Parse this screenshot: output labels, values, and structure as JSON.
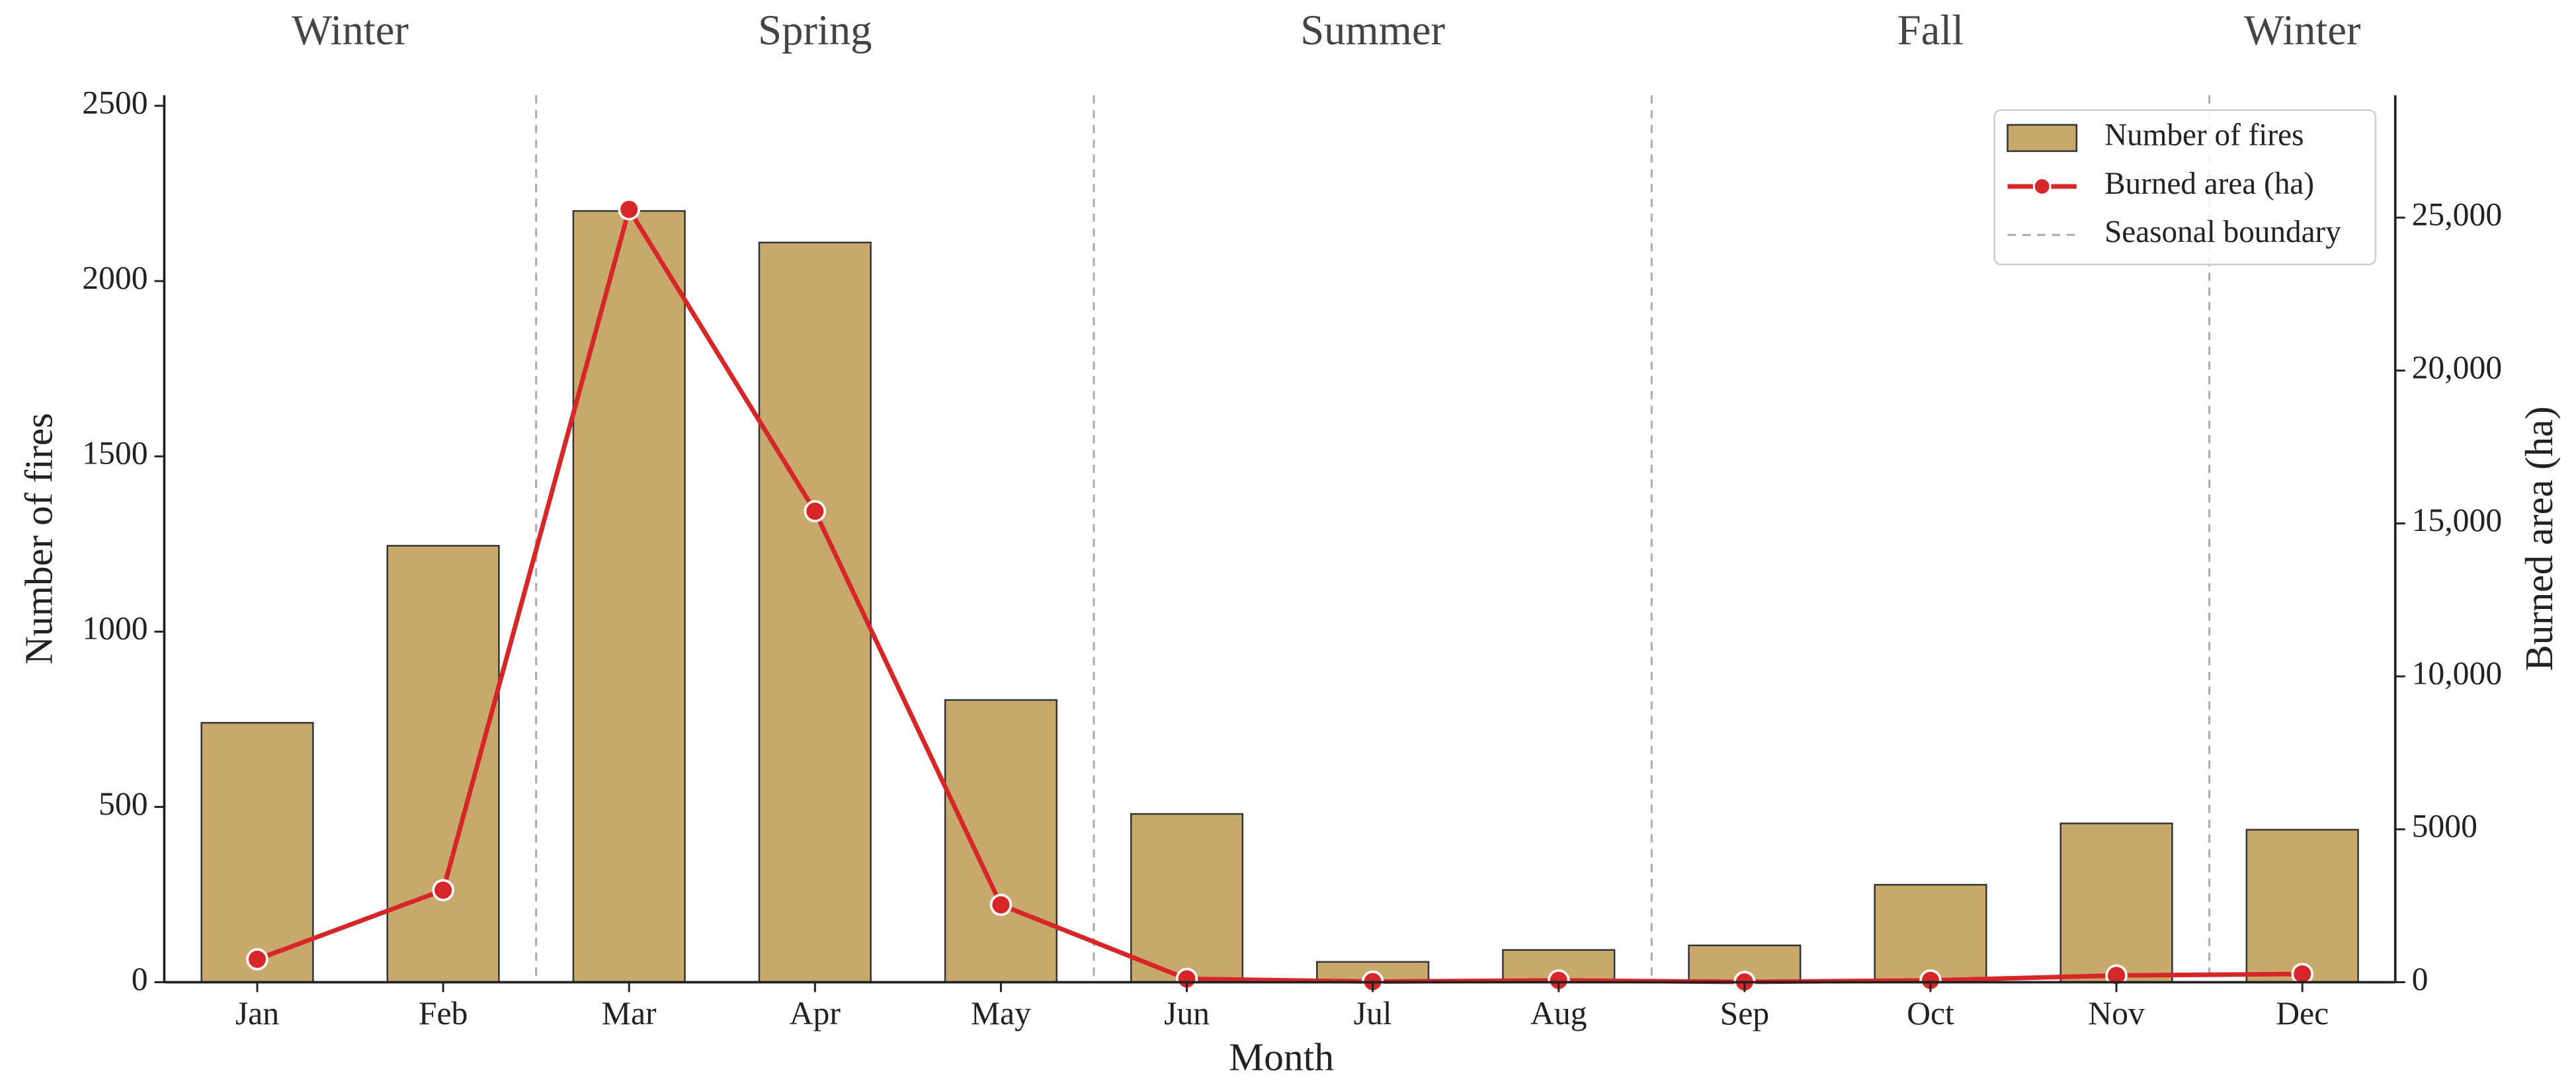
{
  "chart_data": {
    "type": "bar",
    "x_label": "Month",
    "y_label": "Number of fires",
    "y2_label": "Burned area (ha)",
    "categories": [
      "Jan",
      "Feb",
      "Mar",
      "Apr",
      "May",
      "Jun",
      "Jul",
      "Aug",
      "Sep",
      "Oct",
      "Nov",
      "Dec"
    ],
    "series": [
      {
        "name": "Number of fires",
        "type": "bar",
        "color": "#c8a96b",
        "edgecolor": "#333333",
        "values": [
          740,
          1245,
          2200,
          2110,
          805,
          480,
          58,
          92,
          105,
          278,
          453,
          435
        ]
      },
      {
        "name": "Burned area (ha)",
        "type": "line",
        "axis": "y2",
        "color": "#d62728",
        "values": [
          750,
          3010,
          25270,
          15400,
          2530,
          110,
          20,
          60,
          10,
          60,
          220,
          270
        ]
      }
    ],
    "seasonal_boundaries": {
      "name": "Seasonal boundary",
      "color": "#aaaaaa",
      "x": [
        1.5,
        4.5,
        7.5,
        10.5
      ],
      "season_labels": [
        "Winter",
        "Spring",
        "Summer",
        "Fall",
        "Winter"
      ]
    },
    "ylim": [
      0,
      2530
    ],
    "yticks": [
      0,
      500,
      1000,
      1500,
      2000,
      2500
    ],
    "y2lim": [
      0,
      29000
    ],
    "y2ticks": [
      0,
      5000,
      {
        "value": 10000,
        "label": "10,000"
      },
      {
        "value": 15000,
        "label": "15,000"
      },
      {
        "value": 20000,
        "label": "20,000"
      },
      {
        "value": 25000,
        "label": "25,000"
      }
    ],
    "legend": "upper right"
  }
}
